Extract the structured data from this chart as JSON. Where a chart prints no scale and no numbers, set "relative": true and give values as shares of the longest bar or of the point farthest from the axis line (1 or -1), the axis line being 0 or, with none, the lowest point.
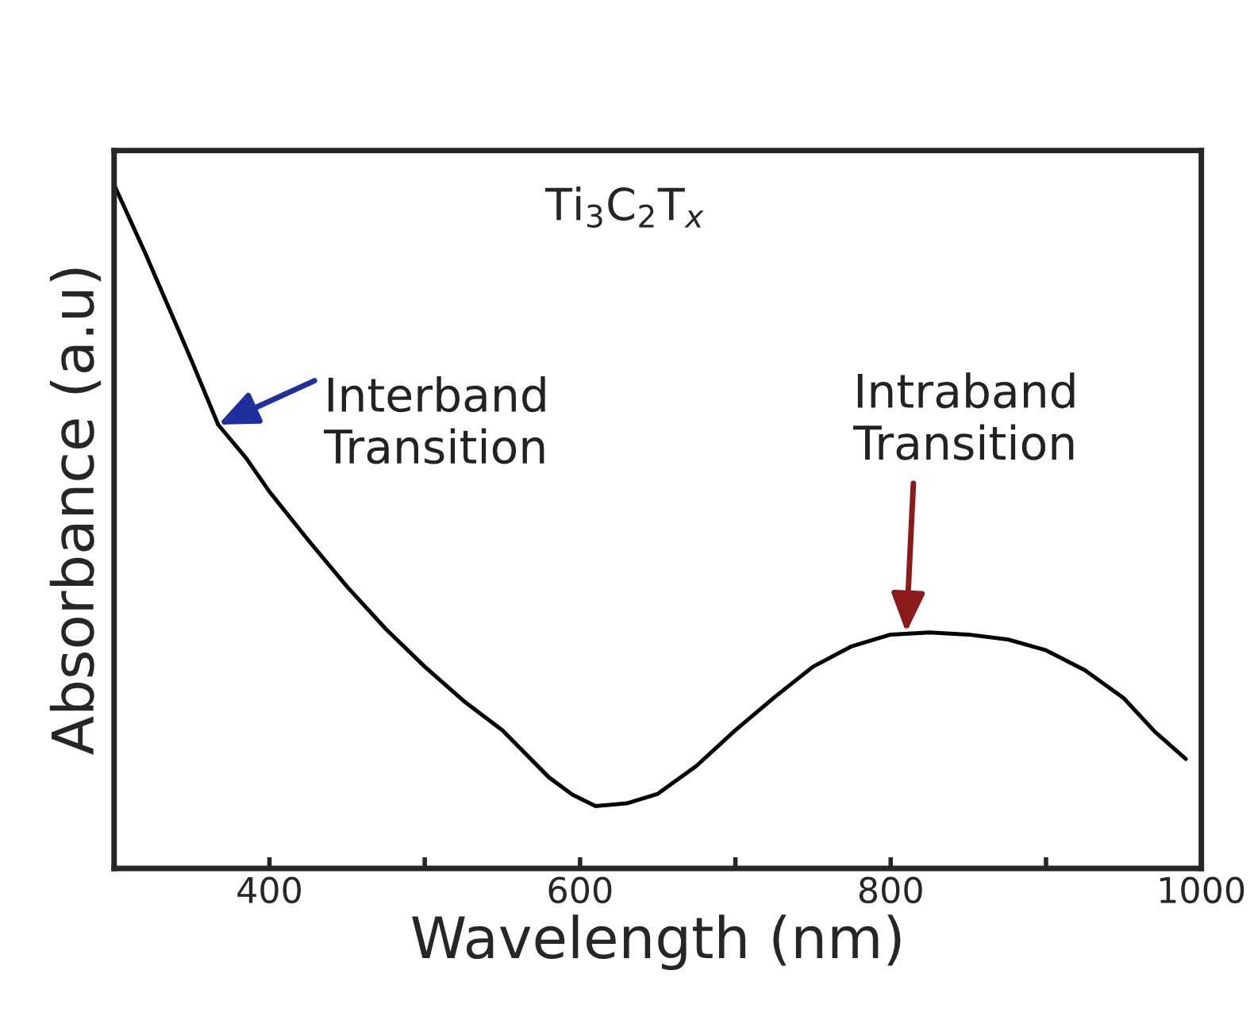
{
  "chart_data": {
    "type": "line",
    "relative": true,
    "xlabel": "Wavelength (nm)",
    "ylabel": "Absorbance (a.u)",
    "xlim": [
      300,
      1000
    ],
    "xticks": [
      400,
      {
        "value": 500,
        "label": null
      },
      600,
      {
        "value": 700,
        "label": null
      },
      800,
      {
        "value": 900,
        "label": null
      },
      1000
    ],
    "x": [
      300,
      320,
      340,
      350,
      367,
      385,
      400,
      425,
      450,
      475,
      500,
      525,
      550,
      580,
      595,
      610,
      630,
      650,
      675,
      700,
      725,
      750,
      775,
      800,
      825,
      850,
      875,
      900,
      925,
      950,
      970,
      990
    ],
    "series": [
      {
        "color": "#000000",
        "values": [
          1.0,
          0.9,
          0.795,
          0.742,
          0.649,
          0.6,
          0.551,
          0.48,
          0.412,
          0.35,
          0.295,
          0.245,
          0.202,
          0.133,
          0.108,
          0.091,
          0.095,
          0.109,
          0.15,
          0.202,
          0.25,
          0.295,
          0.325,
          0.342,
          0.345,
          0.342,
          0.335,
          0.319,
          0.29,
          0.249,
          0.2,
          0.16
        ]
      }
    ],
    "annotations": [
      "Ti$_{3}$C$_{2}$T$_{x}$",
      {
        "text": "Interband\nTransition",
        "x": 367,
        "y": 0.649
      },
      {
        "text": "Intraband\nTransition",
        "x": 810,
        "y": 0.345
      }
    ],
    "grid": false,
    "legend": false,
    "marker": "none",
    "line_style": "solid"
  }
}
